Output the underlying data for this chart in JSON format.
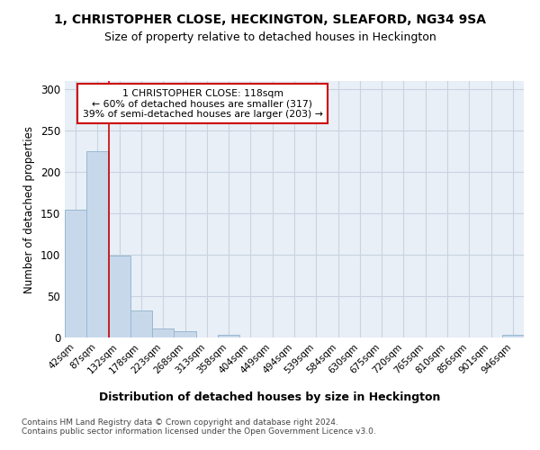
{
  "title": "1, CHRISTOPHER CLOSE, HECKINGTON, SLEAFORD, NG34 9SA",
  "subtitle": "Size of property relative to detached houses in Heckington",
  "xlabel": "Distribution of detached houses by size in Heckington",
  "ylabel": "Number of detached properties",
  "bar_color": "#c8d8eb",
  "bar_edge_color": "#9ab8d0",
  "vline_color": "#cc0000",
  "annotation_text": "1 CHRISTOPHER CLOSE: 118sqm\n← 60% of detached houses are smaller (317)\n39% of semi-detached houses are larger (203) →",
  "annotation_box_facecolor": "#ffffff",
  "annotation_box_edgecolor": "#cc0000",
  "footer_text": "Contains HM Land Registry data © Crown copyright and database right 2024.\nContains public sector information licensed under the Open Government Licence v3.0.",
  "bins": [
    "42sqm",
    "87sqm",
    "132sqm",
    "178sqm",
    "223sqm",
    "268sqm",
    "313sqm",
    "358sqm",
    "404sqm",
    "449sqm",
    "494sqm",
    "539sqm",
    "584sqm",
    "630sqm",
    "675sqm",
    "720sqm",
    "765sqm",
    "810sqm",
    "856sqm",
    "901sqm",
    "946sqm"
  ],
  "values": [
    155,
    225,
    99,
    33,
    11,
    8,
    0,
    3,
    0,
    0,
    0,
    0,
    0,
    0,
    0,
    0,
    0,
    0,
    0,
    0,
    3
  ],
  "vline_pos": 1.5,
  "ylim": [
    0,
    310
  ],
  "yticks": [
    0,
    50,
    100,
    150,
    200,
    250,
    300
  ],
  "grid_color": "#c8d4e0",
  "bg_color": "#e8eff7",
  "fig_bg_color": "#ffffff"
}
